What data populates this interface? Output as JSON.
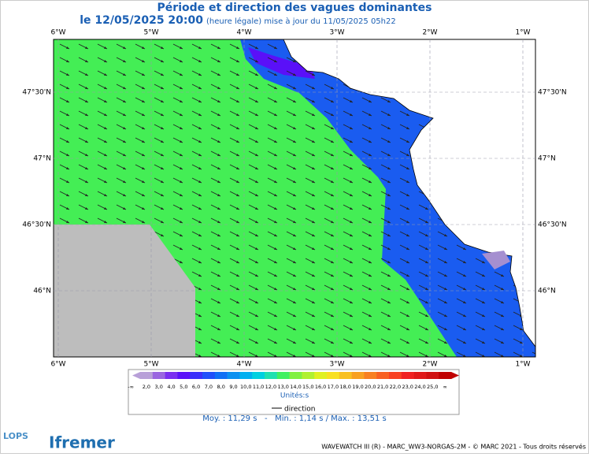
{
  "header": {
    "title": "Période et direction des vagues dominantes",
    "date": "le 12/05/2025 20:00",
    "update": "(heure légale) mise à jour du 11/05/2025 05h22"
  },
  "map": {
    "lon_ticks": [
      {
        "value": -6,
        "label": "6°W"
      },
      {
        "value": -5,
        "label": "5°W"
      },
      {
        "value": -4,
        "label": "4°W"
      },
      {
        "value": -3,
        "label": "3°W"
      },
      {
        "value": -2,
        "label": "2°W"
      },
      {
        "value": -1,
        "label": "1°W"
      }
    ],
    "lat_ticks": [
      {
        "value": 47.5,
        "label": "47°30'N"
      },
      {
        "value": 47,
        "label": "47°N"
      },
      {
        "value": 46.5,
        "label": "46°30'N"
      },
      {
        "value": 46,
        "label": "46°N"
      }
    ]
  },
  "legend": {
    "colors": [
      "#b8a0d8",
      "#9a66e0",
      "#7a2ef0",
      "#5a10f8",
      "#3a30fa",
      "#2050fa",
      "#1070f5",
      "#0a90f0",
      "#00b0f0",
      "#00d0e0",
      "#20e0b0",
      "#40f060",
      "#80f040",
      "#b0f030",
      "#e0f020",
      "#f8e020",
      "#f8c020",
      "#f8a020",
      "#f88020",
      "#f86020",
      "#f84020",
      "#f02020",
      "#e01818",
      "#d01010",
      "#c00000"
    ],
    "labels": [
      "-∞",
      "2,0",
      "3,0",
      "4,0",
      "5,0",
      "6,0",
      "7,0",
      "8,0",
      "9,0",
      "10,0",
      "11,0",
      "12,0",
      "13,0",
      "14,0",
      "15,0",
      "16,0",
      "17,0",
      "18,0",
      "19,0",
      "20,0",
      "21,0",
      "22,0",
      "23,0",
      "24,0",
      "25,0",
      "∞"
    ],
    "unit": "Unités:s",
    "direction": "direction"
  },
  "stats": "Moy. : 11,29 s   -   Min. : 1,14 s / Max. : 13,51 s",
  "logos": {
    "lops": "LOPS",
    "ifremer": "Ifremer"
  },
  "footer": "WAVEWATCH III (R) - MARC_WW3-NORGAS-2M - © MARC 2021 - Tous droits réservés"
}
